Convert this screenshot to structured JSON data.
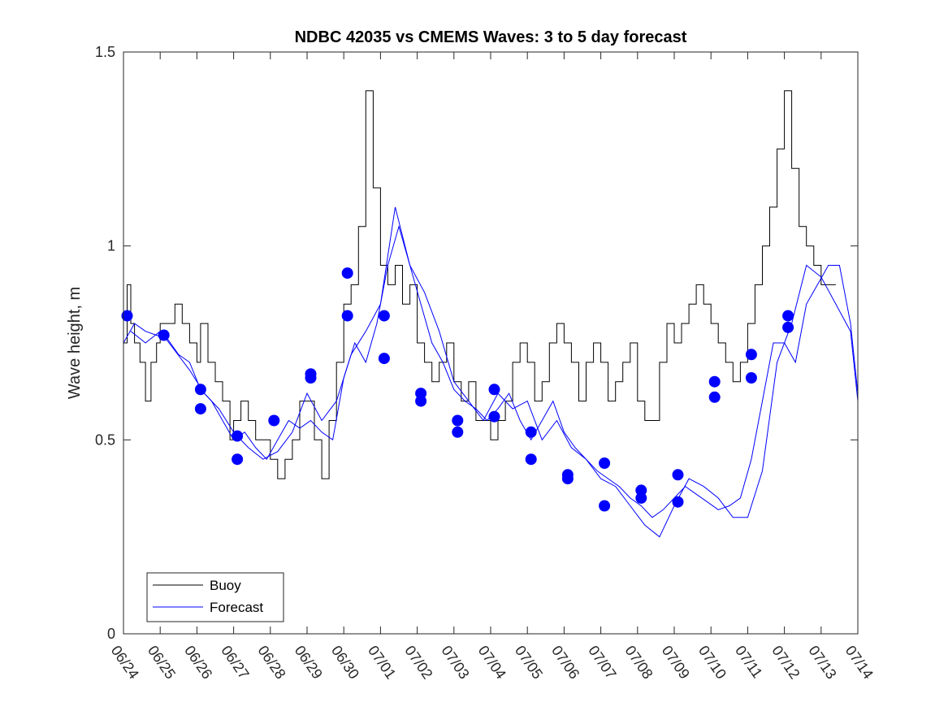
{
  "chart_data": {
    "type": "line",
    "title": "NDBC 42035 vs CMEMS Waves: 3 to 5 day forecast",
    "xlabel": "",
    "ylabel": "Wave height, m",
    "xlim": [
      0,
      20
    ],
    "ylim": [
      0,
      1.5
    ],
    "y_ticks": [
      0,
      0.5,
      1,
      1.5
    ],
    "y_tick_labels": [
      "0",
      "0.5",
      "1",
      "1.5"
    ],
    "x_tick_labels": [
      "06/24",
      "06/25",
      "06/26",
      "06/27",
      "06/28",
      "06/29",
      "06/30",
      "07/01",
      "07/02",
      "07/03",
      "07/04",
      "07/05",
      "07/06",
      "07/07",
      "07/08",
      "07/09",
      "07/10",
      "07/11",
      "07/12",
      "07/13",
      "07/14"
    ],
    "grid": false,
    "legend": {
      "position": "bottom-left",
      "entries": [
        {
          "label": "Buoy",
          "color": "#000000"
        },
        {
          "label": "Forecast",
          "color": "#0000ff"
        }
      ]
    },
    "series": [
      {
        "name": "Buoy",
        "color": "#000000",
        "x": [
          0.0,
          0.1,
          0.2,
          0.3,
          0.45,
          0.6,
          0.75,
          0.9,
          1.0,
          1.2,
          1.4,
          1.6,
          1.8,
          2.0,
          2.1,
          2.3,
          2.5,
          2.7,
          2.9,
          3.0,
          3.2,
          3.4,
          3.6,
          3.8,
          4.0,
          4.2,
          4.4,
          4.6,
          4.8,
          5.0,
          5.2,
          5.4,
          5.6,
          5.8,
          6.0,
          6.2,
          6.4,
          6.6,
          6.8,
          7.0,
          7.2,
          7.4,
          7.6,
          7.8,
          8.0,
          8.2,
          8.4,
          8.6,
          8.8,
          9.0,
          9.2,
          9.4,
          9.6,
          9.8,
          10.0,
          10.2,
          10.4,
          10.6,
          10.8,
          11.0,
          11.2,
          11.4,
          11.6,
          11.8,
          12.0,
          12.2,
          12.4,
          12.6,
          12.8,
          13.0,
          13.2,
          13.4,
          13.6,
          13.8,
          14.0,
          14.2,
          14.4,
          14.6,
          14.8,
          15.0,
          15.2,
          15.4,
          15.6,
          15.8,
          16.0,
          16.2,
          16.4,
          16.6,
          16.8,
          17.0,
          17.2,
          17.4,
          17.6,
          17.8,
          18.0,
          18.2,
          18.4,
          18.6,
          18.8,
          19.0,
          19.2,
          19.4
        ],
        "values": [
          0.75,
          0.9,
          0.8,
          0.75,
          0.7,
          0.6,
          0.7,
          0.75,
          0.8,
          0.8,
          0.85,
          0.8,
          0.75,
          0.7,
          0.8,
          0.7,
          0.65,
          0.6,
          0.5,
          0.55,
          0.6,
          0.55,
          0.5,
          0.5,
          0.45,
          0.4,
          0.45,
          0.5,
          0.6,
          0.6,
          0.5,
          0.4,
          0.55,
          0.7,
          0.85,
          0.9,
          1.05,
          1.4,
          1.15,
          0.95,
          0.9,
          0.95,
          0.85,
          0.9,
          0.75,
          0.7,
          0.65,
          0.7,
          0.75,
          0.65,
          0.6,
          0.65,
          0.55,
          0.55,
          0.5,
          0.55,
          0.6,
          0.7,
          0.75,
          0.7,
          0.6,
          0.65,
          0.75,
          0.8,
          0.75,
          0.7,
          0.6,
          0.7,
          0.75,
          0.7,
          0.6,
          0.65,
          0.7,
          0.75,
          0.6,
          0.55,
          0.55,
          0.7,
          0.8,
          0.75,
          0.8,
          0.85,
          0.9,
          0.85,
          0.8,
          0.75,
          0.7,
          0.65,
          0.7,
          0.8,
          0.9,
          1.0,
          1.1,
          1.25,
          1.4,
          1.2,
          1.05,
          1.0,
          0.95,
          0.9,
          0.9,
          0.9
        ]
      },
      {
        "name": "Forecast",
        "color": "#0000ff",
        "x": [
          0.0,
          0.3,
          0.6,
          0.9,
          1.2,
          1.5,
          1.8,
          2.1,
          2.4,
          2.7,
          3.0,
          3.3,
          3.6,
          3.9,
          4.2,
          4.5,
          4.8,
          5.1,
          5.4,
          5.7,
          6.0,
          6.3,
          6.6,
          6.9,
          7.2,
          7.5,
          7.8,
          8.1,
          8.4,
          8.7,
          9.0,
          9.3,
          9.6,
          9.9,
          10.2,
          10.5,
          10.8,
          11.1,
          11.4,
          11.7,
          12.0,
          12.3,
          12.6,
          12.9,
          13.2,
          13.5,
          13.8,
          14.1,
          14.4,
          14.7,
          15.0,
          15.3,
          15.6,
          15.9,
          16.2,
          16.5,
          16.8,
          17.1,
          17.4,
          17.7,
          18.0,
          18.3,
          18.6,
          18.9,
          19.2,
          19.5,
          19.8,
          20.0
        ],
        "values": [
          0.75,
          0.8,
          0.78,
          0.77,
          0.76,
          0.72,
          0.7,
          0.63,
          0.6,
          0.55,
          0.5,
          0.52,
          0.48,
          0.45,
          0.5,
          0.55,
          0.53,
          0.55,
          0.52,
          0.5,
          0.66,
          0.75,
          0.7,
          0.8,
          0.95,
          1.05,
          0.95,
          0.85,
          0.75,
          0.7,
          0.63,
          0.6,
          0.58,
          0.55,
          0.58,
          0.62,
          0.55,
          0.5,
          0.55,
          0.6,
          0.52,
          0.48,
          0.45,
          0.42,
          0.4,
          0.38,
          0.35,
          0.33,
          0.3,
          0.32,
          0.35,
          0.38,
          0.36,
          0.34,
          0.32,
          0.33,
          0.35,
          0.45,
          0.6,
          0.75,
          0.75,
          0.7,
          0.85,
          0.9,
          0.95,
          0.95,
          0.8,
          0.62
        ]
      },
      {
        "name": "Forecast",
        "color": "#0000ff",
        "x": [
          0.2,
          0.6,
          1.0,
          1.4,
          1.8,
          2.2,
          2.6,
          3.0,
          3.4,
          3.8,
          4.2,
          4.6,
          5.0,
          5.4,
          5.8,
          6.2,
          6.6,
          7.0,
          7.4,
          7.8,
          8.2,
          8.6,
          9.0,
          9.4,
          9.8,
          10.2,
          10.6,
          11.0,
          11.4,
          11.8,
          12.2,
          12.6,
          13.0,
          13.4,
          13.8,
          14.2,
          14.6,
          15.0,
          15.4,
          15.8,
          16.2,
          16.6,
          17.0,
          17.4,
          17.8,
          18.2,
          18.6,
          19.0,
          19.4,
          19.8,
          20.0
        ],
        "values": [
          0.78,
          0.75,
          0.78,
          0.73,
          0.68,
          0.62,
          0.58,
          0.52,
          0.48,
          0.45,
          0.47,
          0.52,
          0.62,
          0.55,
          0.6,
          0.72,
          0.78,
          0.85,
          1.1,
          0.95,
          0.88,
          0.78,
          0.65,
          0.6,
          0.55,
          0.62,
          0.58,
          0.6,
          0.5,
          0.55,
          0.48,
          0.45,
          0.4,
          0.38,
          0.33,
          0.28,
          0.25,
          0.33,
          0.4,
          0.38,
          0.35,
          0.3,
          0.3,
          0.42,
          0.7,
          0.8,
          0.95,
          0.92,
          0.85,
          0.78,
          0.6
        ]
      }
    ],
    "points": {
      "name": "Forecast",
      "color": "#0000ff",
      "x": [
        0.1,
        1.1,
        2.1,
        2.1,
        3.1,
        3.1,
        4.1,
        5.1,
        5.1,
        6.1,
        6.1,
        7.1,
        7.1,
        8.1,
        8.1,
        9.1,
        9.1,
        10.1,
        10.1,
        11.1,
        11.1,
        12.1,
        12.1,
        13.1,
        13.1,
        14.1,
        14.1,
        15.1,
        15.1,
        16.1,
        16.1,
        17.1,
        17.1,
        18.1,
        18.1
      ],
      "values": [
        0.82,
        0.77,
        0.63,
        0.58,
        0.51,
        0.45,
        0.55,
        0.66,
        0.67,
        0.93,
        0.82,
        0.82,
        0.71,
        0.6,
        0.62,
        0.55,
        0.52,
        0.56,
        0.63,
        0.52,
        0.45,
        0.41,
        0.4,
        0.44,
        0.33,
        0.37,
        0.35,
        0.41,
        0.34,
        0.65,
        0.61,
        0.72,
        0.66,
        0.82,
        0.79
      ]
    }
  }
}
